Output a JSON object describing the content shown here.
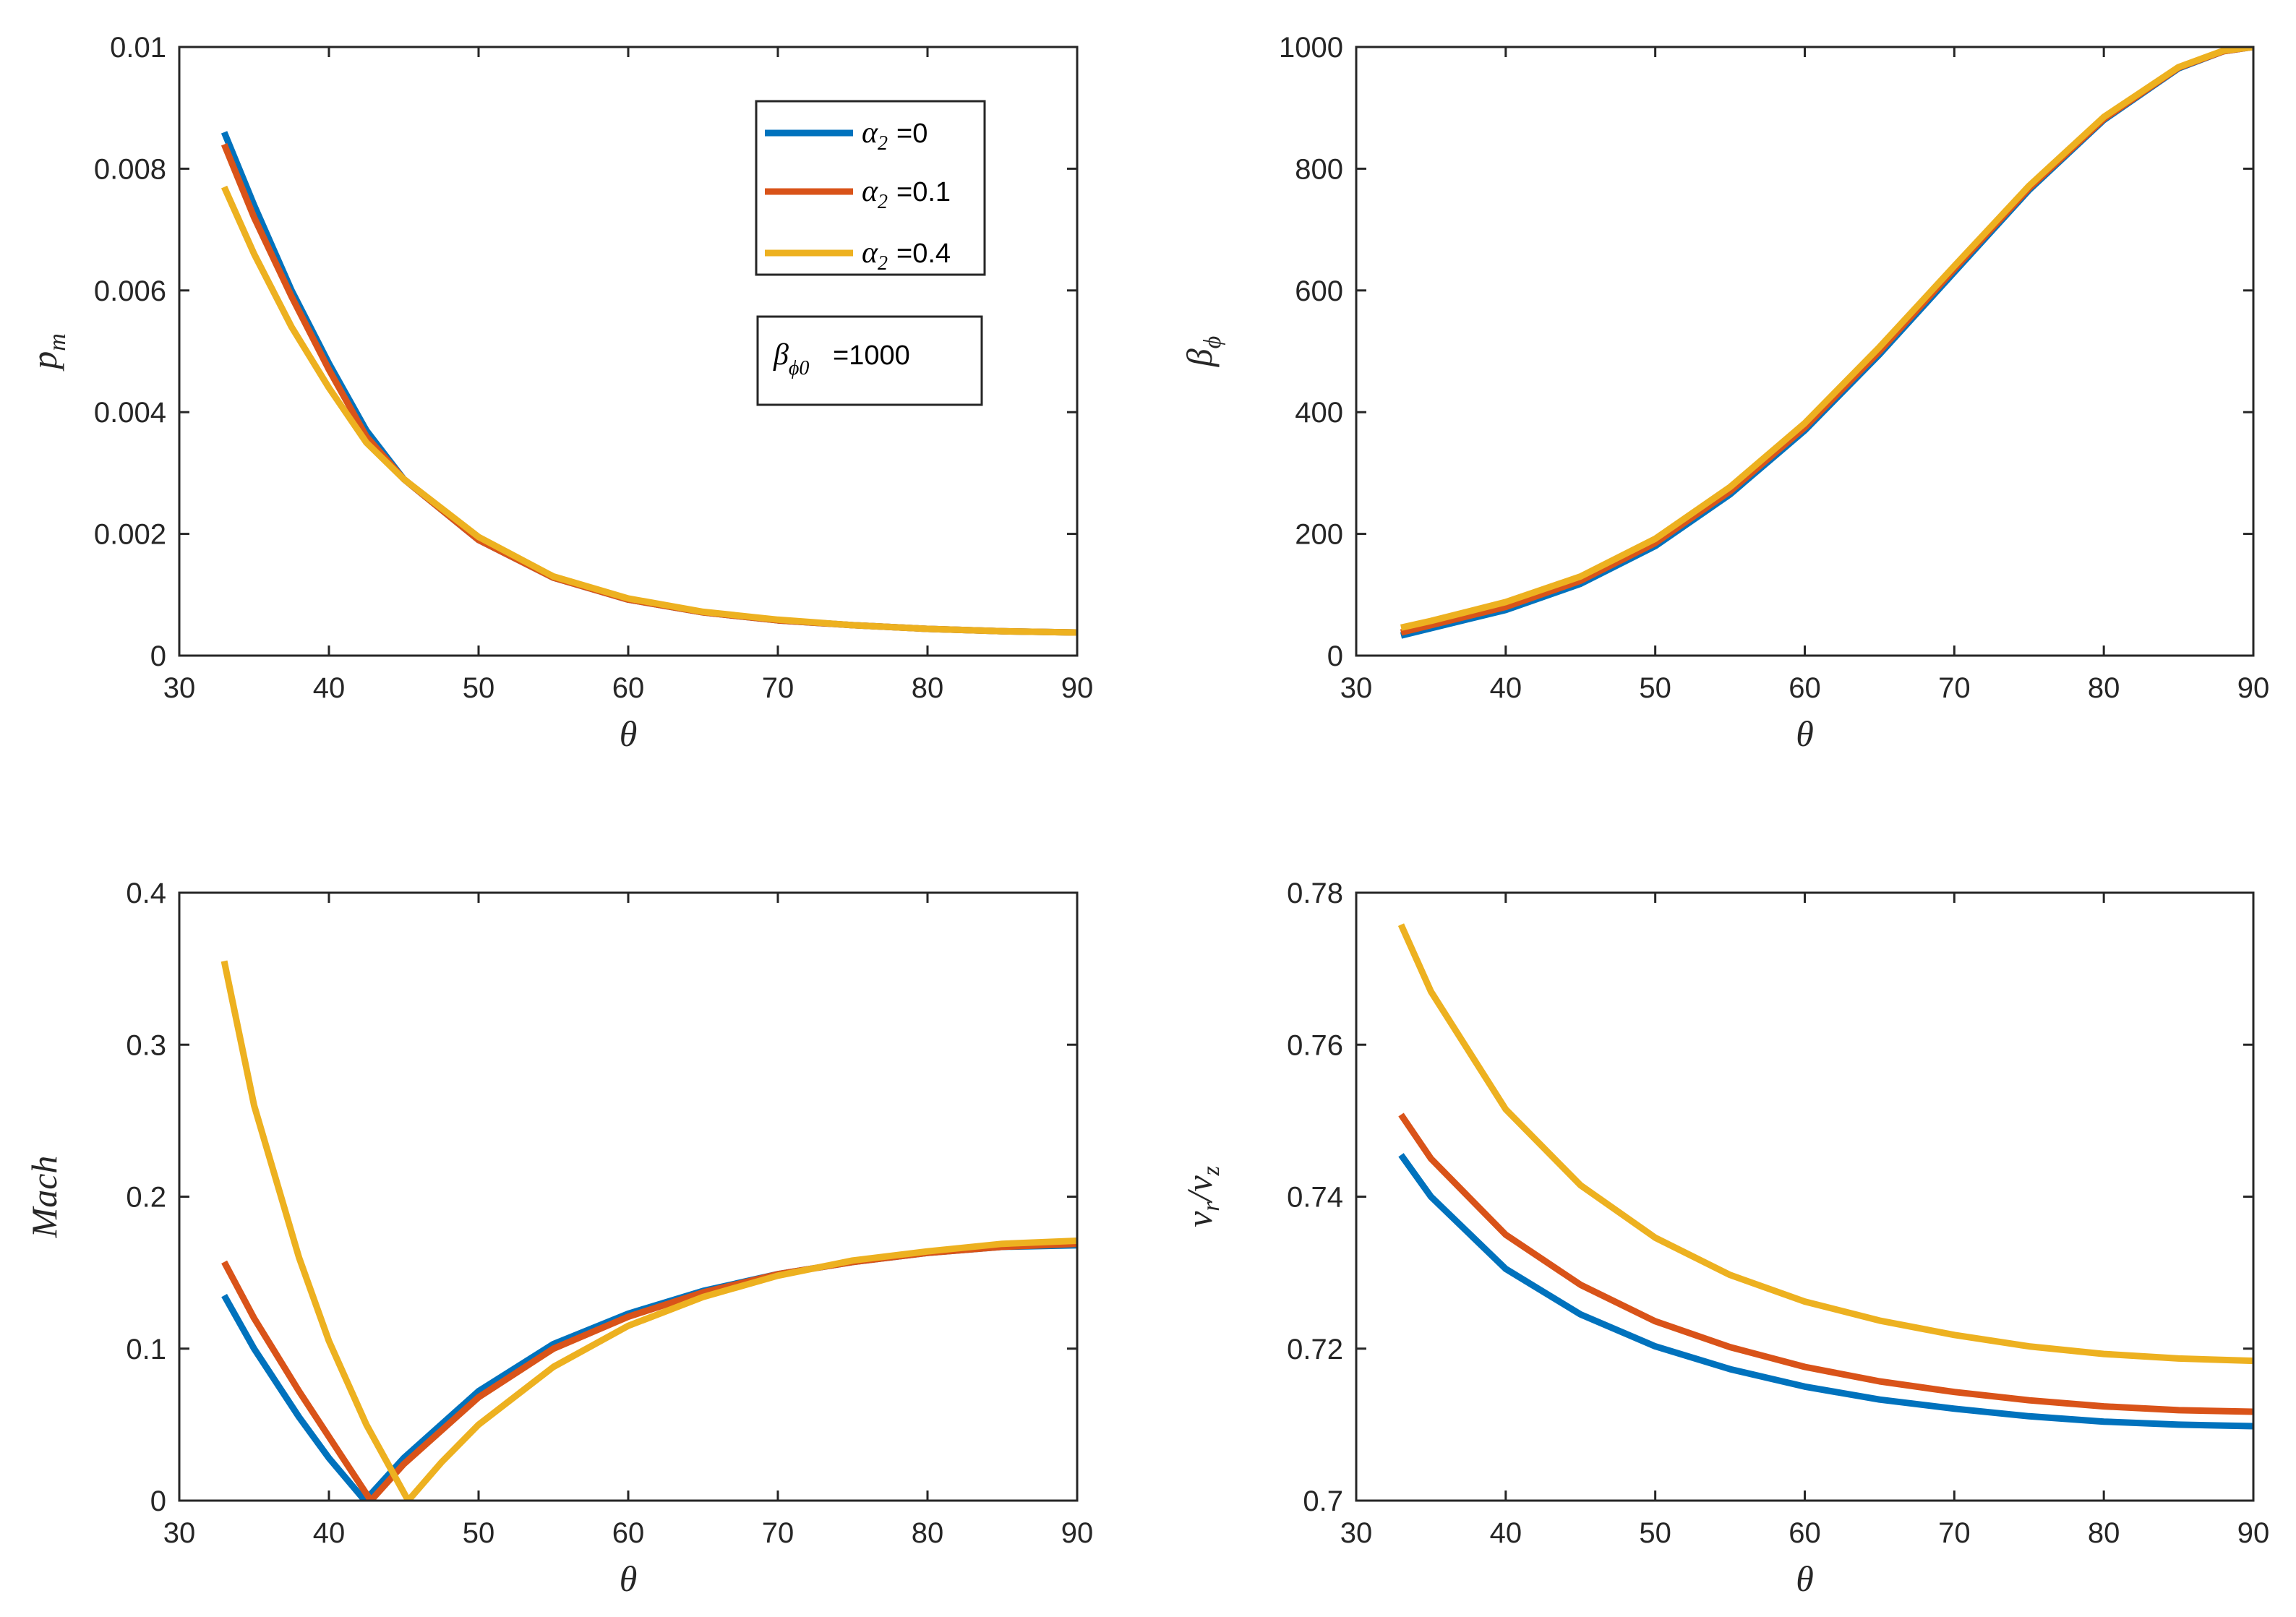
{
  "colors": {
    "alpha0": "#0072BD",
    "alpha01": "#D95319",
    "alpha04": "#EDB120",
    "axis": "#262626"
  },
  "legend": {
    "entries": [
      {
        "symbol": "α",
        "sub": "2",
        "text": "=0",
        "color": "#0072BD"
      },
      {
        "symbol": "α",
        "sub": "2",
        "text": "=0.1",
        "color": "#D95319"
      },
      {
        "symbol": "α",
        "sub": "2",
        "text": "=0.4",
        "color": "#EDB120"
      }
    ],
    "annotation": {
      "symbol": "β",
      "sub": "ϕ0",
      "text": "=1000"
    }
  },
  "chart_data": [
    {
      "type": "line",
      "id": "pm",
      "title": "",
      "xlabel": "θ",
      "ylabel": "p_m",
      "ylabel_main": "p",
      "ylabel_sub": "m",
      "xlim": [
        30,
        90
      ],
      "ylim": [
        0,
        0.01
      ],
      "xticks": [
        30,
        40,
        50,
        60,
        70,
        80,
        90
      ],
      "xtick_labels": [
        "30",
        "40",
        "50",
        "60",
        "70",
        "80",
        "90"
      ],
      "yticks": [
        0,
        0.002,
        0.004,
        0.006,
        0.008,
        0.01
      ],
      "ytick_labels": [
        "0",
        "0.002",
        "0.004",
        "0.006",
        "0.008",
        "0.01"
      ],
      "x": [
        33,
        35,
        37.5,
        40,
        42.5,
        45,
        50,
        55,
        60,
        65,
        70,
        75,
        80,
        85,
        90
      ],
      "series": [
        {
          "name": "α2=0",
          "color": "#0072BD",
          "values": [
            0.0086,
            0.0074,
            0.006,
            0.0048,
            0.0037,
            0.0029,
            0.0019,
            0.00128,
            0.00092,
            0.00071,
            0.00058,
            0.0005,
            0.00044,
            0.0004,
            0.00038
          ]
        },
        {
          "name": "α2=0.1",
          "color": "#D95319",
          "values": [
            0.0084,
            0.0072,
            0.0059,
            0.0047,
            0.0036,
            0.0029,
            0.0019,
            0.00128,
            0.00092,
            0.00071,
            0.00058,
            0.0005,
            0.00044,
            0.0004,
            0.00038
          ]
        },
        {
          "name": "α2=0.4",
          "color": "#EDB120",
          "values": [
            0.0077,
            0.0066,
            0.0054,
            0.0044,
            0.0035,
            0.0029,
            0.00195,
            0.0013,
            0.00094,
            0.00072,
            0.00059,
            0.0005,
            0.00044,
            0.0004,
            0.00038
          ]
        }
      ]
    },
    {
      "type": "line",
      "id": "beta",
      "title": "",
      "xlabel": "θ",
      "ylabel": "β_ϕ",
      "ylabel_main": "β",
      "ylabel_sub": "ϕ",
      "xlim": [
        30,
        90
      ],
      "ylim": [
        0,
        1000
      ],
      "xticks": [
        30,
        40,
        50,
        60,
        70,
        80,
        90
      ],
      "xtick_labels": [
        "30",
        "40",
        "50",
        "60",
        "70",
        "80",
        "90"
      ],
      "yticks": [
        0,
        200,
        400,
        600,
        800,
        1000
      ],
      "ytick_labels": [
        "0",
        "200",
        "400",
        "600",
        "800",
        "1000"
      ],
      "x": [
        33,
        35,
        40,
        45,
        50,
        55,
        60,
        65,
        70,
        75,
        80,
        85,
        88,
        90
      ],
      "series": [
        {
          "name": "α2=0",
          "color": "#0072BD",
          "values": [
            33,
            45,
            75,
            118,
            180,
            265,
            370,
            495,
            630,
            765,
            880,
            965,
            993,
            1000
          ]
        },
        {
          "name": "α2=0.1",
          "color": "#D95319",
          "values": [
            38,
            50,
            80,
            123,
            185,
            270,
            375,
            500,
            635,
            768,
            882,
            966,
            993,
            1000
          ]
        },
        {
          "name": "α2=0.4",
          "color": "#EDB120",
          "values": [
            46,
            57,
            88,
            130,
            192,
            277,
            382,
            507,
            640,
            772,
            885,
            967,
            994,
            1000
          ]
        }
      ]
    },
    {
      "type": "line",
      "id": "mach",
      "title": "",
      "xlabel": "θ",
      "ylabel": "Mach",
      "xlim": [
        30,
        90
      ],
      "ylim": [
        0,
        0.4
      ],
      "xticks": [
        30,
        40,
        50,
        60,
        70,
        80,
        90
      ],
      "xtick_labels": [
        "30",
        "40",
        "50",
        "60",
        "70",
        "80",
        "90"
      ],
      "yticks": [
        0,
        0.1,
        0.2,
        0.3,
        0.4
      ],
      "ytick_labels": [
        "0",
        "0.1",
        "0.2",
        "0.3",
        "0.4"
      ],
      "series": [
        {
          "name": "α2=0",
          "color": "#0072BD",
          "x": [
            33,
            35,
            38,
            40,
            42.4,
            45,
            50,
            55,
            60,
            65,
            70,
            75,
            80,
            85,
            90
          ],
          "values": [
            0.135,
            0.1,
            0.055,
            0.028,
            0.0,
            0.028,
            0.072,
            0.103,
            0.123,
            0.138,
            0.149,
            0.157,
            0.163,
            0.167,
            0.168
          ]
        },
        {
          "name": "α2=0.1",
          "color": "#D95319",
          "x": [
            33,
            35,
            38,
            40,
            42.8,
            45,
            50,
            55,
            60,
            65,
            70,
            75,
            80,
            85,
            90
          ],
          "values": [
            0.157,
            0.12,
            0.072,
            0.042,
            0.0,
            0.024,
            0.068,
            0.1,
            0.121,
            0.137,
            0.149,
            0.157,
            0.163,
            0.167,
            0.169
          ]
        },
        {
          "name": "α2=0.4",
          "color": "#EDB120",
          "x": [
            33,
            35,
            38,
            40,
            42.5,
            45.3,
            47.5,
            50,
            55,
            60,
            65,
            70,
            75,
            80,
            85,
            90
          ],
          "values": [
            0.355,
            0.26,
            0.16,
            0.105,
            0.05,
            0.0,
            0.025,
            0.05,
            0.088,
            0.115,
            0.134,
            0.148,
            0.158,
            0.164,
            0.169,
            0.171
          ]
        }
      ]
    },
    {
      "type": "line",
      "id": "vrvz",
      "title": "",
      "xlabel": "θ",
      "ylabel": "v_r/v_z",
      "xlim": [
        30,
        90
      ],
      "ylim": [
        0.7,
        0.78
      ],
      "xticks": [
        30,
        40,
        50,
        60,
        70,
        80,
        90
      ],
      "xtick_labels": [
        "30",
        "40",
        "50",
        "60",
        "70",
        "80",
        "90"
      ],
      "yticks": [
        0.7,
        0.72,
        0.74,
        0.76,
        0.78
      ],
      "ytick_labels": [
        "0.7",
        "0.72",
        "0.74",
        "0.76",
        "0.78"
      ],
      "x": [
        33,
        35,
        40,
        45,
        50,
        55,
        60,
        65,
        70,
        75,
        80,
        85,
        90
      ],
      "series": [
        {
          "name": "α2=0",
          "color": "#0072BD",
          "values": [
            0.7455,
            0.74,
            0.7305,
            0.7245,
            0.7203,
            0.7173,
            0.715,
            0.7133,
            0.7121,
            0.7111,
            0.7104,
            0.71,
            0.7098
          ]
        },
        {
          "name": "α2=0.1",
          "color": "#D95319",
          "values": [
            0.7508,
            0.745,
            0.735,
            0.7284,
            0.7236,
            0.7202,
            0.7176,
            0.7157,
            0.7143,
            0.7132,
            0.7124,
            0.7119,
            0.7117
          ]
        },
        {
          "name": "α2=0.4",
          "color": "#EDB120",
          "values": [
            0.7758,
            0.767,
            0.7515,
            0.7415,
            0.7346,
            0.7297,
            0.7262,
            0.7237,
            0.7218,
            0.7203,
            0.7193,
            0.7187,
            0.7184
          ]
        }
      ]
    }
  ]
}
